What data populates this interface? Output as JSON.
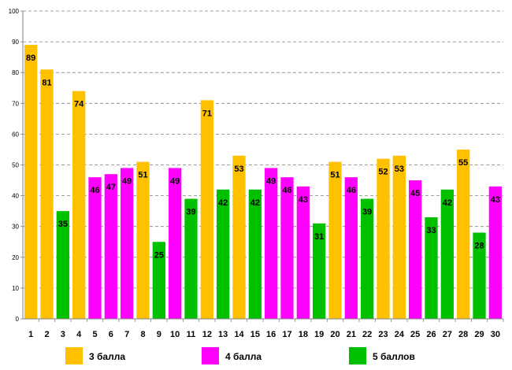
{
  "chart_data": {
    "type": "bar",
    "title": "",
    "xlabel": "",
    "ylabel": "",
    "ylim": [
      0,
      100
    ],
    "ytick_step": 10,
    "grid": true,
    "legend_position": "bottom",
    "categories": [
      "1",
      "2",
      "3",
      "4",
      "5",
      "6",
      "7",
      "8",
      "9",
      "10",
      "11",
      "12",
      "13",
      "14",
      "15",
      "16",
      "17",
      "18",
      "19",
      "20",
      "21",
      "22",
      "23",
      "24",
      "25",
      "26",
      "27",
      "28",
      "29",
      "30"
    ],
    "values": [
      89,
      81,
      35,
      74,
      46,
      47,
      49,
      51,
      25,
      49,
      39,
      71,
      42,
      53,
      42,
      49,
      46,
      43,
      31,
      51,
      46,
      39,
      52,
      53,
      45,
      33,
      42,
      55,
      28,
      43
    ],
    "groups": [
      0,
      0,
      2,
      0,
      1,
      1,
      1,
      0,
      2,
      1,
      2,
      0,
      2,
      0,
      2,
      1,
      1,
      1,
      2,
      0,
      1,
      2,
      0,
      0,
      1,
      2,
      2,
      0,
      2,
      1
    ],
    "series": [
      {
        "name": "3 балла",
        "color": "#FFC000"
      },
      {
        "name": "4 балла",
        "color": "#FF00FF"
      },
      {
        "name": "5 баллов",
        "color": "#00C000"
      }
    ]
  }
}
